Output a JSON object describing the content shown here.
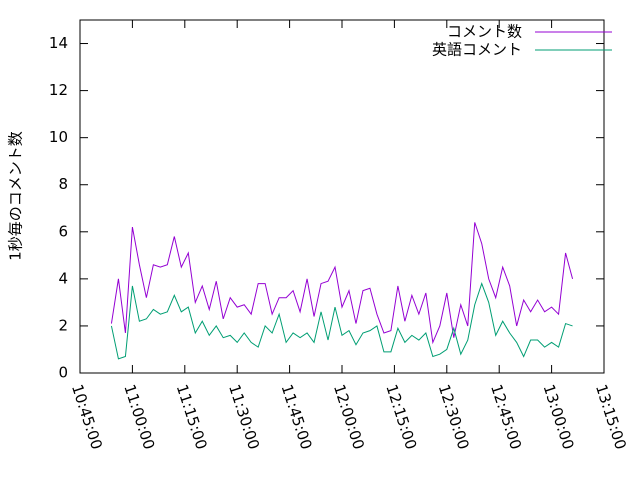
{
  "chart_data": {
    "type": "line",
    "ylabel": "1秒毎のコメント数",
    "x": [
      "10:54:00",
      "10:56:00",
      "10:58:00",
      "11:00:00",
      "11:02:00",
      "11:04:00",
      "11:06:00",
      "11:08:00",
      "11:10:00",
      "11:12:00",
      "11:14:00",
      "11:16:00",
      "11:18:00",
      "11:20:00",
      "11:22:00",
      "11:24:00",
      "11:26:00",
      "11:28:00",
      "11:30:00",
      "11:32:00",
      "11:34:00",
      "11:36:00",
      "11:38:00",
      "11:40:00",
      "11:42:00",
      "11:44:00",
      "11:46:00",
      "11:48:00",
      "11:50:00",
      "11:52:00",
      "11:54:00",
      "11:56:00",
      "11:58:00",
      "12:00:00",
      "12:02:00",
      "12:04:00",
      "12:06:00",
      "12:08:00",
      "12:10:00",
      "12:12:00",
      "12:14:00",
      "12:16:00",
      "12:18:00",
      "12:20:00",
      "12:22:00",
      "12:24:00",
      "12:26:00",
      "12:28:00",
      "12:30:00",
      "12:32:00",
      "12:34:00",
      "12:36:00",
      "12:38:00",
      "12:40:00",
      "12:42:00",
      "12:44:00",
      "12:46:00",
      "12:48:00",
      "12:50:00",
      "12:52:00",
      "12:54:00",
      "12:56:00",
      "12:58:00",
      "13:00:00",
      "13:02:00",
      "13:04:00",
      "13:06:00"
    ],
    "series": [
      {
        "name": "コメント数",
        "color": "#9400d3",
        "values": [
          2.1,
          4.0,
          1.7,
          6.2,
          4.6,
          3.2,
          4.6,
          4.5,
          4.6,
          5.8,
          4.5,
          5.1,
          3.0,
          3.7,
          2.7,
          3.9,
          2.3,
          3.2,
          2.8,
          2.9,
          2.5,
          3.8,
          3.8,
          2.5,
          3.2,
          3.2,
          3.5,
          2.6,
          4.0,
          2.4,
          3.8,
          3.9,
          4.5,
          2.8,
          3.5,
          2.1,
          3.5,
          3.6,
          2.5,
          1.7,
          1.8,
          3.7,
          2.2,
          3.3,
          2.5,
          3.4,
          1.3,
          2.0,
          3.4,
          1.5,
          2.9,
          2.0,
          6.4,
          5.5,
          4.0,
          3.2,
          4.5,
          3.7,
          2.0,
          3.1,
          2.6,
          3.1,
          2.6,
          2.8,
          2.5,
          5.1,
          4.0
        ]
      },
      {
        "name": "英語コメント",
        "color": "#009e73",
        "values": [
          2.0,
          0.6,
          0.7,
          3.7,
          2.2,
          2.3,
          2.7,
          2.5,
          2.6,
          3.3,
          2.6,
          2.8,
          1.7,
          2.2,
          1.6,
          2.0,
          1.5,
          1.6,
          1.3,
          1.7,
          1.3,
          1.1,
          2.0,
          1.7,
          2.5,
          1.3,
          1.7,
          1.5,
          1.7,
          1.3,
          2.6,
          1.4,
          2.8,
          1.6,
          1.8,
          1.2,
          1.7,
          1.8,
          2.0,
          0.9,
          0.9,
          1.9,
          1.3,
          1.6,
          1.4,
          1.7,
          0.7,
          0.8,
          1.0,
          1.9,
          0.8,
          1.4,
          2.9,
          3.8,
          3.0,
          1.6,
          2.2,
          1.7,
          1.3,
          0.7,
          1.4,
          1.4,
          1.1,
          1.3,
          1.1,
          2.1,
          2.0
        ]
      }
    ],
    "xlim": [
      "10:45:00",
      "13:15:00"
    ],
    "xticks": [
      "10:45:00",
      "11:00:00",
      "11:15:00",
      "11:30:00",
      "11:45:00",
      "12:00:00",
      "12:15:00",
      "12:30:00",
      "12:45:00",
      "13:00:00",
      "13:15:00"
    ],
    "ylim": [
      0,
      15
    ],
    "yticks": [
      0,
      2,
      4,
      6,
      8,
      10,
      12,
      14
    ],
    "grid": false,
    "legend": "top-right"
  }
}
